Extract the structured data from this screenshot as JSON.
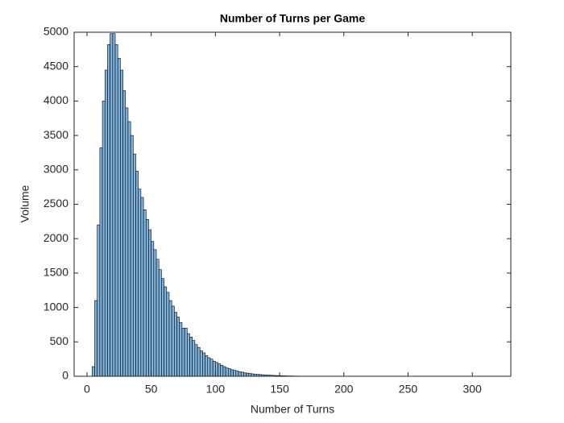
{
  "chart_data": {
    "type": "histogram",
    "title": "Number of Turns per Game",
    "xlabel": "Number of Turns",
    "ylabel": "Volume",
    "bins": [
      4,
      6,
      8,
      10,
      12,
      14,
      16,
      18,
      20,
      22,
      24,
      26,
      28,
      30,
      32,
      34,
      36,
      38,
      40,
      42,
      44,
      46,
      48,
      50,
      52,
      54,
      56,
      58,
      60,
      62,
      64,
      66,
      68,
      70,
      72,
      74,
      76,
      78,
      80,
      82,
      84,
      86,
      88,
      90,
      92,
      94,
      96,
      98,
      100,
      102,
      104,
      106,
      108,
      110,
      112,
      114,
      116,
      118,
      120,
      122,
      124,
      126,
      128,
      130,
      132,
      134,
      136,
      138,
      140,
      142,
      144,
      146,
      148,
      150,
      152,
      154,
      156,
      158,
      160,
      162,
      164,
      166,
      168,
      170,
      172,
      174,
      176,
      178,
      180,
      182,
      184
    ],
    "counts": [
      140,
      1100,
      2200,
      3320,
      4000,
      4450,
      4820,
      4980,
      4980,
      4820,
      4620,
      4450,
      4150,
      3900,
      3700,
      3500,
      3230,
      2980,
      2720,
      2600,
      2420,
      2280,
      2130,
      1960,
      1840,
      1700,
      1550,
      1420,
      1300,
      1220,
      1100,
      1020,
      930,
      860,
      780,
      700,
      700,
      620,
      570,
      520,
      460,
      420,
      370,
      340,
      300,
      270,
      250,
      220,
      200,
      180,
      160,
      140,
      120,
      110,
      95,
      85,
      75,
      65,
      60,
      50,
      45,
      40,
      35,
      30,
      28,
      25,
      22,
      20,
      17,
      15,
      13,
      11,
      10,
      8,
      7,
      6,
      5,
      5,
      4,
      3,
      3,
      2,
      2,
      2,
      1,
      1,
      1,
      1,
      1,
      1
    ],
    "color": "#7fb3de",
    "xlim": [
      -10,
      330
    ],
    "xticks": [
      0,
      50,
      100,
      150,
      200,
      250,
      300
    ],
    "ylim": [
      0,
      5000
    ],
    "yticks": [
      0,
      500,
      1000,
      1500,
      2000,
      2500,
      3000,
      3500,
      4000,
      4500,
      5000
    ]
  }
}
